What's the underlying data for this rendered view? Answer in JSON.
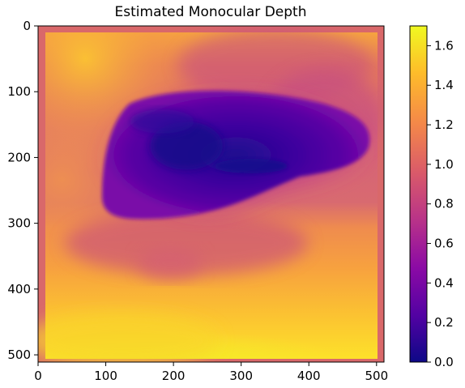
{
  "chart_data": {
    "type": "heatmap",
    "title": "Estimated Monocular Depth",
    "xlabel": "",
    "ylabel": "",
    "xlim": [
      0,
      511
    ],
    "ylim": [
      511,
      0
    ],
    "x_ticks": [
      "0",
      "100",
      "200",
      "300",
      "400",
      "500"
    ],
    "y_ticks": [
      "0",
      "100",
      "200",
      "300",
      "400",
      "500"
    ],
    "colormap": "plasma",
    "colorbar": {
      "range": [
        0.0,
        1.7
      ],
      "ticks": [
        "0.0",
        "0.2",
        "0.4",
        "0.6",
        "0.8",
        "1.0",
        "1.2",
        "1.4",
        "1.6"
      ]
    },
    "grid": false,
    "regions": [
      {
        "region": "border frame",
        "value": 0.9
      },
      {
        "region": "top band",
        "value": 1.25
      },
      {
        "region": "central dark object",
        "x_range": [
          115,
          460
        ],
        "y_range": [
          100,
          290
        ],
        "value": 0.15
      },
      {
        "region": "middle band",
        "x_range": [
          10,
          500
        ],
        "y_range": [
          290,
          360
        ],
        "value": 1.2
      },
      {
        "region": "bottom region",
        "value": 1.55
      }
    ]
  },
  "colors": {
    "plasma_0": "#0d0887",
    "plasma_1": "#5302a3",
    "plasma_2": "#8b0aa5",
    "plasma_3": "#b83289",
    "plasma_4": "#db5c68",
    "plasma_5": "#f48849",
    "plasma_6": "#febc2a",
    "plasma_7": "#f0f921",
    "border": "#d9686a"
  }
}
